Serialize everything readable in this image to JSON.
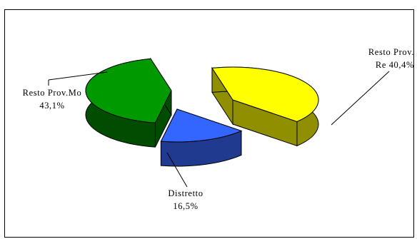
{
  "chart_data": {
    "type": "pie",
    "title": "",
    "slices": [
      {
        "name": "Resto Prov.Re",
        "value": 40.4,
        "label_line1": "Resto Prov.",
        "label_line2": "Re 40,4%",
        "color": "#FFFF00",
        "side_color": "#8F8F00"
      },
      {
        "name": "Distretto",
        "value": 16.5,
        "label_line1": "Distretto",
        "label_line2": "16,5%",
        "color": "#3366FF",
        "side_color": "#1F3A8F"
      },
      {
        "name": "Resto Prov.Mo",
        "value": 43.1,
        "label_line1": "Resto Prov.Mo",
        "label_line2": "43,1%",
        "color": "#009900",
        "side_color": "#004C00"
      }
    ],
    "legend": "none",
    "exploded": true,
    "three_d": true
  }
}
